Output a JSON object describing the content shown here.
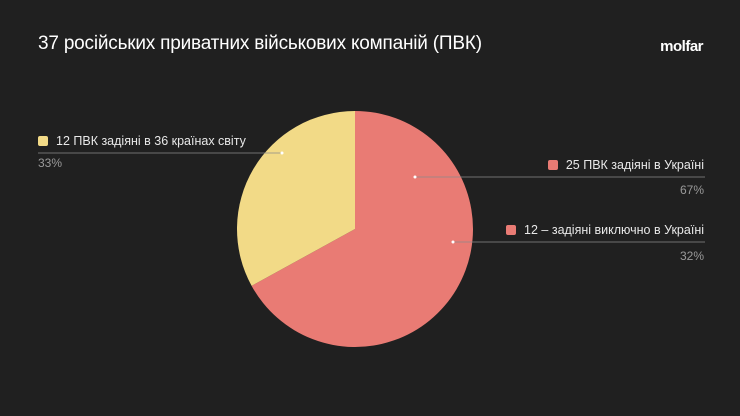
{
  "title": "37 російських приватних військових компаній (ПВК)",
  "logo": "molfar",
  "chart_data": {
    "type": "pie",
    "title": "37 російських приватних військових компаній (ПВК)",
    "slices": [
      {
        "label": "25 ПВК задіяні в Україні",
        "value": 67,
        "pct_label": "67%",
        "color": "#e97b74"
      },
      {
        "label": "12 ПВК задіяні в 36 країнах світу",
        "value": 33,
        "pct_label": "33%",
        "color": "#f2da87"
      }
    ],
    "annotations": [
      {
        "label": "12 – задіяні виключно в Україні",
        "pct_label": "32%",
        "color": "#e97b74"
      }
    ]
  }
}
